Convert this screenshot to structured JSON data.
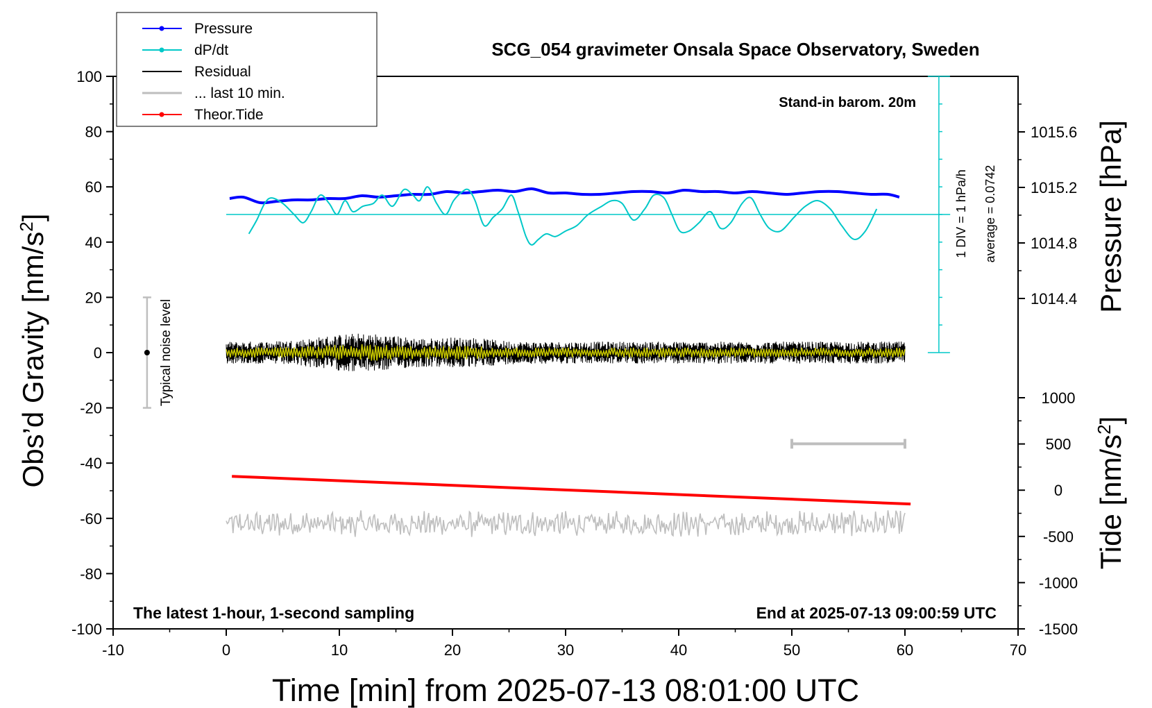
{
  "title": "SCG_054 gravimeter Onsala Space Observatory, Sweden",
  "barometer_note": "Stand-in barom. 20m",
  "footer_left": "The latest 1-hour, 1-second sampling",
  "footer_right": "End at 2025-07-13 09:00:59 UTC",
  "dpdt_div_label": "1 DIV = 1 hPa/h",
  "dpdt_average_label": "average = 0.0742",
  "noise_label": "Typical noise level",
  "legend": [
    {
      "label": "Pressure",
      "color": "#0000ff",
      "marker": true
    },
    {
      "label": "dP/dt",
      "color": "#00c8c8",
      "marker": true
    },
    {
      "label": "Residual",
      "color": "#000000",
      "marker": false
    },
    {
      "label": "... last 10 min.",
      "color": "#bebebe",
      "marker": false
    },
    {
      "label": "Theor.Tide",
      "color": "#ff0000",
      "marker": true
    }
  ],
  "chart_data": {
    "type": "line",
    "title": "SCG_054 gravimeter Onsala Space Observatory, Sweden",
    "xlabel": "Time [min] from 2025-07-13 08:01:00 UTC",
    "xlim": [
      -10,
      70
    ],
    "xticks": [
      "-10",
      "0",
      "10",
      "20",
      "30",
      "40",
      "50",
      "60",
      "70"
    ],
    "y_left": {
      "label": "Obs’d Gravity [nm/s",
      "label_sup": "2",
      "label_end": "]",
      "ylim": [
        -100,
        100
      ],
      "ticks": [
        "100",
        "80",
        "60",
        "40",
        "20",
        "0",
        "-20",
        "-40",
        "-60",
        "-80",
        "-100"
      ]
    },
    "y_right_pressure": {
      "label": "Pressure [hPa]",
      "ticks": [
        "1015.6",
        "1015.2",
        "1014.8",
        "1014.4"
      ],
      "tick_values": [
        1015.6,
        1015.2,
        1014.8,
        1014.4
      ]
    },
    "y_right_tide": {
      "label": "Tide [nm/s",
      "label_sup": "2",
      "label_end": "]",
      "ticks": [
        "1000",
        "500",
        "0",
        "-500",
        "-1000",
        "-1500"
      ],
      "tick_values": [
        1000,
        500,
        0,
        -500,
        -1000,
        -1500
      ]
    },
    "noise_bar": {
      "x": -7,
      "y_center": 0,
      "y_min": -20,
      "y_max": 20
    },
    "last10_range": {
      "x_start": 50,
      "x_end": 60,
      "y": -33
    },
    "series": [
      {
        "name": "Pressure",
        "color": "#0000ff",
        "axis": "pressure_hPa",
        "x": [
          0.3,
          1.5,
          3,
          4.5,
          6,
          7.5,
          9,
          10.5,
          12,
          13.5,
          15,
          16.5,
          18,
          19.5,
          21,
          22.5,
          24,
          25.5,
          27,
          28.5,
          30,
          31.5,
          33,
          34.5,
          36,
          37.5,
          39,
          40.5,
          42,
          43.5,
          45,
          46.5,
          48,
          49.5,
          51,
          52.5,
          54,
          55.5,
          57,
          58.5,
          59.5
        ],
        "y": [
          1015.12,
          1015.13,
          1015.09,
          1015.1,
          1015.11,
          1015.11,
          1015.12,
          1015.12,
          1015.14,
          1015.13,
          1015.14,
          1015.15,
          1015.15,
          1015.17,
          1015.16,
          1015.17,
          1015.18,
          1015.17,
          1015.19,
          1015.16,
          1015.16,
          1015.15,
          1015.15,
          1015.16,
          1015.17,
          1015.17,
          1015.16,
          1015.18,
          1015.17,
          1015.17,
          1015.16,
          1015.17,
          1015.16,
          1015.15,
          1015.16,
          1015.17,
          1015.17,
          1015.16,
          1015.15,
          1015.15,
          1015.13
        ]
      },
      {
        "name": "dP/dt",
        "color": "#00c8c8",
        "axis": "gravity",
        "x": [
          2,
          2.7,
          3.4,
          4,
          5,
          6,
          6.8,
          7.5,
          8.3,
          9.1,
          9.8,
          10.5,
          11.2,
          12.1,
          13,
          13.8,
          14.7,
          15.7,
          16.5,
          17.1,
          17.8,
          18.6,
          19.4,
          20.1,
          20.8,
          21.4,
          22,
          22.8,
          23.6,
          24.4,
          25.2,
          25.8,
          26.5,
          27,
          27.6,
          28.3,
          29.1,
          30,
          31,
          32,
          33.2,
          34.1,
          35,
          36,
          37,
          37.8,
          38.7,
          39.4,
          40.1,
          40.9,
          41.8,
          42.8,
          43.7,
          44.6,
          45.6,
          46.4,
          47.2,
          48,
          49,
          50.2,
          51.2,
          52.3,
          53.4,
          54.4,
          55.5,
          56.5,
          57.5
        ],
        "y": [
          43,
          48,
          54,
          56,
          54,
          50,
          47,
          51,
          57,
          54,
          50,
          55,
          51,
          53,
          54,
          57,
          53,
          59,
          57,
          55,
          60,
          54,
          50,
          55,
          58,
          59,
          55,
          46,
          49,
          52,
          57,
          51,
          42,
          39,
          41,
          43,
          42,
          44,
          46,
          50,
          53,
          55,
          54,
          48,
          52,
          57,
          56,
          50,
          44,
          44,
          47,
          51,
          45,
          47,
          54,
          56,
          50,
          45,
          44,
          49,
          53,
          55,
          52,
          46,
          41,
          44,
          52
        ]
      },
      {
        "name": "Theor.Tide",
        "color": "#ff0000",
        "axis": "tide",
        "x": [
          0.5,
          60.5
        ],
        "y": [
          150,
          -150
        ]
      }
    ],
    "residual": {
      "x_range": [
        0,
        60
      ],
      "amplitude_peak": 10,
      "color": "#000000",
      "overlay_color": "#c8c800"
    },
    "last10": {
      "x_range": [
        0,
        60
      ],
      "offset_y": -62,
      "color": "#bebebe"
    },
    "dpdt_baseline": {
      "y": 50,
      "x_range": [
        0,
        64
      ]
    },
    "dpdt_scale": {
      "x": 63,
      "y_min": 0,
      "y_max": 100,
      "division": 10
    }
  }
}
